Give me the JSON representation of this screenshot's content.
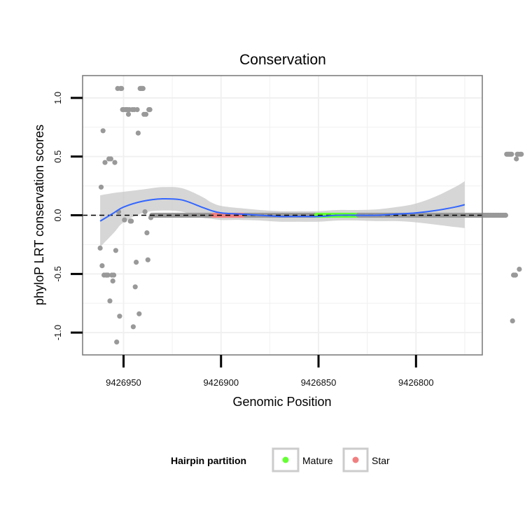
{
  "chart_data": {
    "type": "scatter",
    "title": "Conservation",
    "xlabel": "Genomic Position",
    "ylabel": "phyloP LRT conservation scores",
    "x_reversed": true,
    "xlim": [
      9426971,
      9426766
    ],
    "ylim": [
      -1.19,
      1.19
    ],
    "x_ticks": [
      9426950,
      9426900,
      9426850,
      9426800
    ],
    "x_tick_labels": [
      "9426950",
      "9426900",
      "9426850",
      "9426800"
    ],
    "y_ticks": [
      -1.0,
      -0.5,
      0.0,
      0.5,
      1.0
    ],
    "y_tick_labels": [
      "-1.0",
      "-0.5",
      "0.0",
      "0.5",
      "1.0"
    ],
    "reference_line_y": 0,
    "legend": {
      "title": "Hairpin partition",
      "position": "bottom",
      "entries": [
        {
          "label": "Mature",
          "color": "#66ff33"
        },
        {
          "label": "Star",
          "color": "#f08080"
        }
      ]
    },
    "colors": {
      "point": "#999999",
      "mature": "#66ff33",
      "star": "#f08080",
      "smooth": "#3366ff",
      "ribbon": "#c8c8c8",
      "panel_border": "#7f7f7f",
      "grid": "#f0f0f0"
    },
    "x_start": 9426962,
    "x_step": -0.5,
    "scores": [
      -0.28,
      0.24,
      -0.43,
      0.72,
      -0.51,
      0.45,
      -0.51,
      -0.51,
      -0.51,
      0.48,
      -0.73,
      0.48,
      -0.51,
      -0.56,
      -0.51,
      0.45,
      -0.3,
      -1.08,
      1.08,
      0.03,
      -0.86,
      1.08,
      1.08,
      0.9,
      0.9,
      -0.04,
      0.9,
      0.9,
      0.9,
      0.86,
      0.9,
      -0.05,
      -0.05,
      0.9,
      -0.95,
      0.9,
      -0.61,
      -0.4,
      0.9,
      0.7,
      -0.84,
      1.08,
      1.08,
      1.08,
      1.08,
      0.86,
      0.03,
      0.86,
      -0.15,
      -0.38,
      0.9,
      0.9,
      -0.02,
      0.0,
      0.0,
      0.0,
      0.0,
      0.0,
      0.0,
      0.0,
      0.0,
      0.0,
      0.0,
      0.0,
      0.0,
      0.0,
      0.0,
      0.0,
      0.0,
      0.0,
      0.0,
      0.0,
      0.0,
      0.0,
      0.0,
      0.0,
      0.0,
      0.0,
      0.0,
      0.0,
      0.0,
      0.0,
      0.0,
      0.0,
      0.0,
      0.0,
      0.0,
      0.0,
      0.0,
      0.0,
      0.0,
      0.0,
      0.0,
      0.0,
      0.0,
      0.0,
      0.0,
      0.0,
      0.0,
      0.0,
      0.0,
      0.0,
      0.0,
      0.0,
      0.0,
      0.0,
      0.0,
      0.0,
      0.0,
      0.0,
      0.0,
      0.0,
      0.0,
      0.0,
      0.0,
      0.0,
      0.0,
      0.0,
      0.0,
      0.0,
      0.0,
      0.0,
      0.0,
      0.0,
      0.0,
      0.0,
      0.0,
      0.0,
      0.0,
      0.0,
      0.0,
      0.0,
      0.0,
      0.0,
      0.0,
      0.0,
      0.0,
      0.0,
      0.0,
      0.0,
      0.0,
      0.0,
      0.0,
      0.0,
      0.0,
      0.0,
      0.0,
      0.0,
      0.0,
      0.0,
      0.0,
      0.0,
      0.0,
      0.0,
      0.0,
      0.0,
      0.0,
      0.0,
      0.0,
      0.0,
      0.0,
      0.0,
      0.0,
      0.0,
      0.0,
      0.0,
      0.0,
      0.0,
      0.0,
      0.0,
      0.0,
      0.0,
      0.0,
      0.0,
      0.0,
      0.0,
      0.0,
      0.0,
      0.0,
      0.0,
      0.0,
      0.0,
      0.0,
      0.0,
      0.0,
      0.0,
      0.0,
      0.0,
      0.0,
      0.0,
      0.0,
      0.0,
      0.0,
      0.0,
      0.0,
      0.0,
      0.0,
      0.0,
      0.0,
      0.0,
      0.0,
      0.0,
      0.0,
      0.0,
      0.0,
      0.0,
      0.0,
      0.0,
      0.0,
      0.0,
      0.0,
      0.0,
      0.0,
      0.0,
      0.0,
      0.0,
      0.0,
      0.0,
      0.0,
      0.0,
      0.0,
      0.0,
      0.0,
      0.0,
      0.0,
      0.0,
      0.0,
      0.0,
      0.0,
      0.0,
      0.0,
      0.0,
      0.0,
      0.0,
      0.0,
      0.0,
      0.0,
      0.0,
      0.0,
      0.0,
      0.0,
      0.0,
      0.0,
      0.0,
      0.0,
      0.0,
      0.0,
      0.0,
      0.0,
      0.0,
      0.0,
      0.0,
      0.0,
      0.0,
      0.0,
      0.0,
      0.0,
      0.0,
      0.0,
      0.0,
      0.0,
      0.0,
      0.0,
      0.0,
      0.0,
      0.0,
      0.0,
      0.0,
      0.0,
      0.0,
      0.0,
      0.0,
      0.0,
      0.0,
      0.0,
      0.0,
      0.0,
      0.0,
      0.0,
      0.0,
      0.0,
      0.0,
      0.0,
      0.0,
      0.0,
      0.0,
      0.0,
      0.0,
      0.0,
      0.0,
      0.0,
      0.0,
      0.0,
      0.0,
      0.0,
      0.0,
      0.0,
      0.0,
      0.0,
      0.0,
      0.0,
      0.0,
      0.0,
      0.0,
      0.0,
      0.0,
      0.0,
      0.0,
      0.0,
      0.0,
      0.0,
      0.0,
      0.0,
      0.0,
      0.0,
      0.0,
      0.0,
      0.0,
      0.0,
      0.0,
      0.0,
      0.0,
      0.0,
      0.0,
      0.0,
      0.0,
      0.0,
      0.0,
      0.0,
      0.0,
      0.0,
      0.0,
      0.0,
      0.0,
      0.0,
      0.0,
      0.0,
      0.0,
      0.0,
      0.0,
      0.0,
      0.0,
      0.0,
      0.0,
      0.0,
      0.0,
      0.0,
      0.0,
      0.0,
      0.0,
      0.0,
      0.0,
      0.0,
      0.0,
      0.0,
      0.0,
      0.0,
      0.0,
      0.0,
      0.0,
      0.0,
      0.0,
      0.0,
      0.0,
      0.0,
      0.0,
      0.0,
      0.0,
      0.0,
      0.0,
      0.0,
      0.0,
      0.0,
      0.0,
      0.0,
      0.0,
      0.0,
      0.0,
      0.0,
      0.0,
      0.0,
      0.0,
      0.0,
      0.0,
      0.0,
      0.0,
      0.0,
      0.0,
      0.0,
      0.0,
      0.0,
      0.0,
      0.0,
      0.0,
      0.0,
      0.0,
      0.0,
      0.0,
      0.0,
      0.0,
      0.0,
      0.0,
      0.0,
      0.0,
      0.0,
      0.0,
      0.0,
      0.0,
      0.0,
      0.0,
      0.0,
      0.0,
      0.0,
      0.0,
      0.0,
      0.0,
      0.0,
      0.52,
      0.52,
      0.52,
      0.52,
      0.52,
      0.52,
      -0.9,
      -0.51,
      -0.51,
      -0.51,
      0.48,
      0.52,
      0.52,
      -0.46,
      0.52,
      0.52
    ],
    "mature_range": [
      9426851,
      9426830
    ],
    "star_range": [
      9426904,
      9426888
    ],
    "smooth": {
      "x": [
        9426962,
        9426955,
        9426950,
        9426940,
        9426930,
        9426920,
        9426910,
        9426905,
        9426900,
        9426890,
        9426880,
        9426870,
        9426860,
        9426850,
        9426840,
        9426830,
        9426820,
        9426810,
        9426800,
        9426790,
        9426780,
        9426775
      ],
      "y": [
        -0.05,
        0.02,
        0.07,
        0.12,
        0.14,
        0.13,
        0.07,
        0.04,
        0.02,
        0.01,
        0.0,
        -0.01,
        -0.01,
        -0.01,
        0.0,
        0.0,
        0.0,
        0.01,
        0.02,
        0.04,
        0.07,
        0.09
      ],
      "se": [
        0.22,
        0.17,
        0.13,
        0.1,
        0.1,
        0.1,
        0.09,
        0.07,
        0.06,
        0.05,
        0.045,
        0.045,
        0.045,
        0.045,
        0.045,
        0.045,
        0.05,
        0.06,
        0.08,
        0.12,
        0.17,
        0.2
      ]
    }
  }
}
